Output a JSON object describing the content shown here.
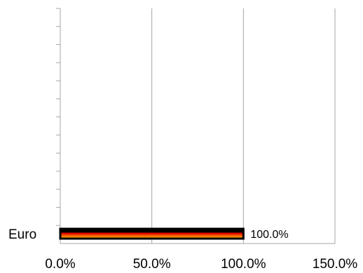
{
  "chart_data": {
    "type": "bar",
    "orientation": "horizontal",
    "categories": [
      "Euro"
    ],
    "values": [
      100.0
    ],
    "data_labels": [
      "100.0%"
    ],
    "xlim": [
      0,
      150
    ],
    "x_ticks": [
      "0.0%",
      "50.0%",
      "100.0%",
      "150.0%"
    ],
    "grid": true,
    "bar_fill": "gradient",
    "colors": {
      "bar_outline": "#000000",
      "bar_gradient": [
        "#000000",
        "#dd0000",
        "#ffcc00"
      ],
      "gridline": "#a6a6a6",
      "axis": "#a6a6a6"
    }
  }
}
